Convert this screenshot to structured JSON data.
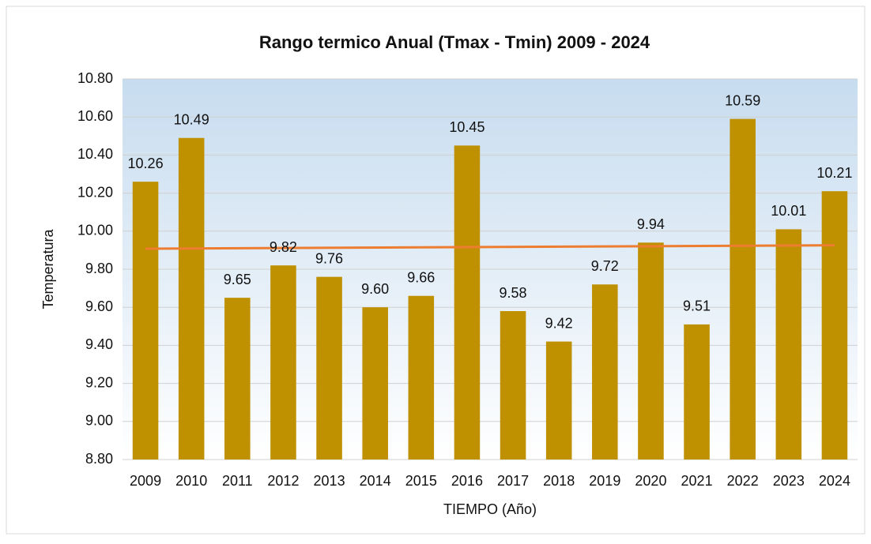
{
  "chart_data": {
    "type": "bar",
    "title": "Rango termico Anual (Tmax - Tmin) 2009 - 2024",
    "x_label": "TIEMPO (Año)",
    "y_label": "Temperatura",
    "categories": [
      "2009",
      "2010",
      "2011",
      "2012",
      "2013",
      "2014",
      "2015",
      "2016",
      "2017",
      "2018",
      "2019",
      "2020",
      "2021",
      "2022",
      "2023",
      "2024"
    ],
    "values": [
      10.26,
      10.49,
      9.65,
      9.82,
      9.76,
      9.6,
      9.66,
      10.45,
      9.58,
      9.42,
      9.72,
      9.94,
      9.51,
      10.59,
      10.01,
      10.21
    ],
    "value_labels": [
      "10.26",
      "10.49",
      "9.65",
      "9.82",
      "9.76",
      "9.60",
      "9.66",
      "10.45",
      "9.58",
      "9.42",
      "9.72",
      "9.94",
      "9.51",
      "10.59",
      "10.01",
      "10.21"
    ],
    "color": "#bf9000",
    "trendline": true,
    "trendline_color": "#ed7d31",
    "ylim": [
      8.8,
      10.8
    ],
    "yticks": [
      {
        "value": 8.8,
        "label": "8.80"
      },
      {
        "value": 9.0,
        "label": "9.00"
      },
      {
        "value": 9.2,
        "label": "9.20"
      },
      {
        "value": 9.4,
        "label": "9.40"
      },
      {
        "value": 9.6,
        "label": "9.60"
      },
      {
        "value": 9.8,
        "label": "9.80"
      },
      {
        "value": 10.0,
        "label": "10.00"
      },
      {
        "value": 10.2,
        "label": "10.20"
      },
      {
        "value": 10.4,
        "label": "10.40"
      },
      {
        "value": 10.6,
        "label": "10.60"
      },
      {
        "value": 10.8,
        "label": "10.80"
      }
    ],
    "grid": true
  }
}
